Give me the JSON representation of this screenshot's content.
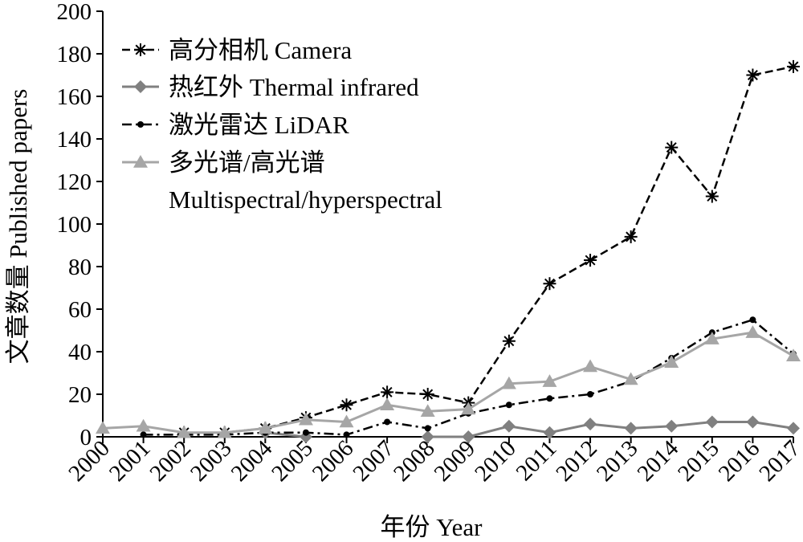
{
  "chart_data": {
    "type": "line",
    "title": "",
    "xlabel": "年份 Year",
    "ylabel": "文章数量 Published papers",
    "ylim": [
      0,
      200
    ],
    "yticks": [
      0,
      20,
      40,
      60,
      80,
      100,
      120,
      140,
      160,
      180,
      200
    ],
    "categories": [
      "2000",
      "2001",
      "2002",
      "2003",
      "2004",
      "2005",
      "2006",
      "2007",
      "2008",
      "2009",
      "2010",
      "2011",
      "2012",
      "2013",
      "2014",
      "2015",
      "2016",
      "2017"
    ],
    "grid": false,
    "legend_position": "top-left",
    "series": [
      {
        "name": "高分相机 Camera",
        "color": "#000000",
        "line_style": "dashed",
        "marker": "asterisk",
        "values": [
          null,
          null,
          2,
          2,
          4,
          9,
          15,
          21,
          20,
          16,
          45,
          72,
          83,
          94,
          136,
          113,
          170,
          174
        ]
      },
      {
        "name": "热红外 Thermal infrared",
        "color": "#808080",
        "line_style": "solid",
        "marker": "diamond",
        "values": [
          null,
          null,
          null,
          null,
          2,
          0,
          null,
          null,
          0,
          0,
          5,
          2,
          6,
          4,
          5,
          7,
          7,
          4
        ]
      },
      {
        "name": "激光雷达 LiDAR",
        "color": "#000000",
        "line_style": "dash-dot",
        "marker": "dot",
        "values": [
          null,
          1,
          1,
          1,
          2,
          2,
          1,
          7,
          4,
          11,
          15,
          18,
          20,
          26,
          37,
          49,
          55,
          39
        ]
      },
      {
        "name": "多光谱/高光谱 Multispectral/hyperspectral",
        "name_lines": [
          "多光谱/高光谱",
          "Multispectral/hyperspectral"
        ],
        "color": "#a6a6a6",
        "line_style": "solid",
        "marker": "triangle",
        "values": [
          4,
          5,
          2,
          2,
          4,
          8,
          7,
          15,
          12,
          13,
          25,
          26,
          33,
          27,
          35,
          46,
          49,
          38
        ]
      }
    ]
  }
}
